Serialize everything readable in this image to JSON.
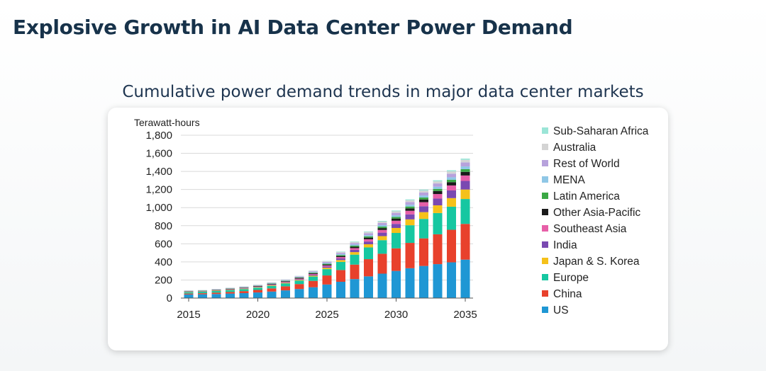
{
  "header": {
    "title": "Explosive Growth in AI Data Center Power Demand",
    "subtitle": "Cumulative power demand trends in major data center markets"
  },
  "chart_data": {
    "type": "bar",
    "stacked": true,
    "ylabel": "Terawatt-hours",
    "ylim": [
      0,
      1800
    ],
    "yticks": [
      "0",
      "200",
      "400",
      "600",
      "800",
      "1,000",
      "1,200",
      "1,400",
      "1,600",
      "1,800"
    ],
    "ytick_values": [
      0,
      200,
      400,
      600,
      800,
      1000,
      1200,
      1400,
      1600,
      1800
    ],
    "xticks": [
      "2015",
      "2020",
      "2025",
      "2030",
      "2035"
    ],
    "xtick_values": [
      2015,
      2020,
      2025,
      2030,
      2035
    ],
    "grid": true,
    "legend_position": "right",
    "categories": [
      2015,
      2016,
      2017,
      2018,
      2019,
      2020,
      2021,
      2022,
      2023,
      2024,
      2025,
      2026,
      2027,
      2028,
      2029,
      2030,
      2031,
      2032,
      2033,
      2034,
      2035
    ],
    "series": [
      {
        "name": "US",
        "color": "#1f97d4",
        "values": [
          40,
          42,
          45,
          50,
          55,
          62,
          72,
          85,
          100,
          120,
          150,
          180,
          210,
          240,
          270,
          300,
          330,
          355,
          375,
          395,
          425
        ]
      },
      {
        "name": "China",
        "color": "#e8412c",
        "values": [
          10,
          12,
          15,
          18,
          22,
          28,
          35,
          45,
          55,
          70,
          100,
          130,
          160,
          190,
          220,
          250,
          280,
          305,
          330,
          360,
          395
        ]
      },
      {
        "name": "Europe",
        "color": "#16c7a1",
        "values": [
          15,
          16,
          18,
          20,
          22,
          25,
          28,
          32,
          38,
          48,
          70,
          90,
          110,
          130,
          150,
          170,
          195,
          215,
          235,
          255,
          275
        ]
      },
      {
        "name": "Japan & S. Korea",
        "color": "#f5c11a",
        "values": [
          3,
          3,
          4,
          4,
          5,
          5,
          6,
          7,
          8,
          10,
          15,
          20,
          28,
          35,
          45,
          55,
          65,
          75,
          85,
          95,
          105
        ]
      },
      {
        "name": "India",
        "color": "#7a49b1",
        "values": [
          2,
          2,
          3,
          3,
          4,
          4,
          5,
          6,
          8,
          10,
          14,
          18,
          24,
          30,
          38,
          45,
          55,
          65,
          75,
          85,
          95
        ]
      },
      {
        "name": "Southeast Asia",
        "color": "#e75fa8",
        "values": [
          2,
          2,
          3,
          3,
          4,
          4,
          5,
          6,
          7,
          9,
          12,
          15,
          20,
          25,
          30,
          35,
          40,
          45,
          50,
          55,
          60
        ]
      },
      {
        "name": "Other Asia-Pacific",
        "color": "#1a1a1a",
        "values": [
          3,
          3,
          3,
          4,
          4,
          5,
          5,
          6,
          7,
          8,
          10,
          12,
          15,
          18,
          21,
          24,
          27,
          30,
          33,
          36,
          40
        ]
      },
      {
        "name": "Latin America",
        "color": "#3aa845",
        "values": [
          2,
          2,
          2,
          3,
          3,
          3,
          4,
          4,
          5,
          6,
          8,
          10,
          12,
          14,
          16,
          18,
          20,
          22,
          24,
          27,
          30
        ]
      },
      {
        "name": "MENA",
        "color": "#8fc7e6",
        "values": [
          2,
          2,
          2,
          3,
          3,
          3,
          4,
          4,
          5,
          6,
          8,
          10,
          12,
          14,
          16,
          18,
          20,
          22,
          24,
          27,
          30
        ]
      },
      {
        "name": "Rest of World",
        "color": "#b7a2dc",
        "values": [
          3,
          3,
          3,
          4,
          4,
          5,
          5,
          6,
          7,
          9,
          12,
          15,
          18,
          21,
          24,
          27,
          30,
          33,
          36,
          40,
          45
        ]
      },
      {
        "name": "Australia",
        "color": "#d4d4d4",
        "values": [
          2,
          2,
          2,
          2,
          3,
          3,
          3,
          4,
          4,
          5,
          7,
          9,
          11,
          13,
          15,
          17,
          19,
          21,
          23,
          25,
          28
        ]
      },
      {
        "name": "Sub-Saharan Africa",
        "color": "#9be5d7",
        "values": [
          1,
          1,
          1,
          1,
          1,
          1,
          2,
          2,
          2,
          3,
          4,
          5,
          6,
          7,
          8,
          9,
          10,
          11,
          12,
          13,
          14
        ]
      }
    ]
  }
}
